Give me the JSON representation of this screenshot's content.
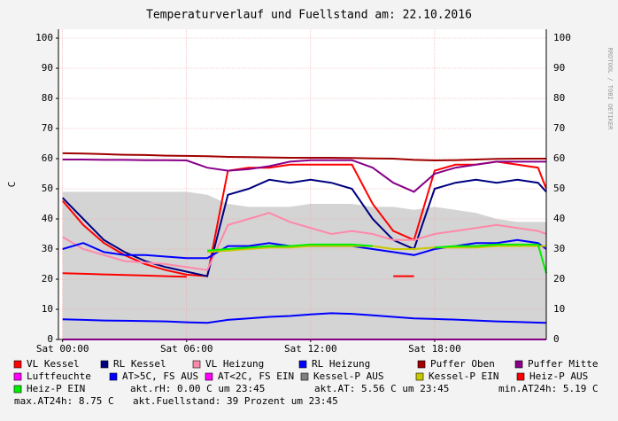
{
  "chart_data": {
    "type": "line",
    "title": "Temperaturverlauf und Fuellstand am: 22.10.2016",
    "side_text": "RRDTOOL / TOBI OETIKER",
    "y_label": "C",
    "x": [
      0,
      1,
      2,
      3,
      4,
      5,
      6,
      7,
      8,
      9,
      10,
      11,
      12,
      13,
      14,
      15,
      16,
      17,
      18,
      19,
      20,
      21,
      22,
      23,
      23.4
    ],
    "xlim": [
      -0.2,
      23.4
    ],
    "xticks": [
      {
        "value": 0,
        "label": "Sat 00:00"
      },
      {
        "value": 6,
        "label": "Sat 06:00"
      },
      {
        "value": 12,
        "label": "Sat 12:00"
      },
      {
        "value": 18,
        "label": "Sat 18:00"
      }
    ],
    "ylim": [
      0,
      100
    ],
    "yticks": [
      0,
      10,
      20,
      30,
      40,
      50,
      60,
      70,
      80,
      90,
      100
    ],
    "grid": true,
    "series": [
      {
        "name": "Kessel-P AUS",
        "color": "#d4d4d4",
        "legend_color": "#808080",
        "style": "area",
        "values": [
          49,
          49,
          49,
          49,
          49,
          49,
          49,
          48,
          45,
          44,
          44,
          44,
          45,
          45,
          45,
          44,
          44,
          43,
          44,
          43,
          42,
          40,
          39,
          39,
          39
        ]
      },
      {
        "name": "VL Kessel",
        "color": "#ff0000",
        "values": [
          46,
          38,
          32,
          28,
          25,
          23,
          21.5,
          21,
          56,
          57,
          57,
          58,
          58,
          58,
          58,
          45,
          36,
          33,
          56,
          58,
          58,
          59,
          58,
          57,
          50
        ]
      },
      {
        "name": "RL Kessel",
        "color": "#000080",
        "values": [
          47,
          40,
          33,
          29,
          26,
          24,
          22.5,
          21,
          48,
          50,
          53,
          52,
          53,
          52,
          50,
          40,
          33,
          30,
          50,
          52,
          53,
          52,
          53,
          52,
          49
        ]
      },
      {
        "name": "VL Heizung",
        "color": "#ff88aa",
        "values": [
          34,
          30,
          28,
          26,
          25.5,
          25,
          24,
          23,
          38,
          40,
          42,
          39,
          37,
          35,
          36,
          35,
          33,
          33,
          35,
          36,
          37,
          38,
          37,
          36,
          35
        ]
      },
      {
        "name": "RL Heizung",
        "color": "#0000ff",
        "values": [
          30,
          32,
          29,
          28,
          28,
          27.5,
          27,
          27,
          31,
          31,
          32,
          31,
          31,
          31,
          31,
          30,
          29,
          28,
          30,
          31,
          32,
          32,
          33,
          32,
          30
        ]
      },
      {
        "name": "Puffer Oben",
        "color": "#a00000",
        "values": [
          61.8,
          61.7,
          61.5,
          61.3,
          61.2,
          61,
          60.9,
          60.8,
          60.6,
          60.5,
          60.4,
          60.3,
          60.3,
          60.3,
          60.2,
          60.1,
          60,
          59.6,
          59.4,
          59.5,
          59.7,
          59.9,
          60,
          60,
          60
        ]
      },
      {
        "name": "Puffer Mitte",
        "color": "#880088",
        "values": [
          59.7,
          59.7,
          59.6,
          59.6,
          59.5,
          59.5,
          59.4,
          57,
          56,
          56.5,
          57.5,
          59,
          59.5,
          59.5,
          59.5,
          57,
          52,
          49,
          55,
          57,
          58,
          59,
          59,
          59,
          59
        ]
      },
      {
        "name": "Luftfeuchte",
        "color": "#ff00ff",
        "values": [
          0,
          0,
          0,
          0,
          0,
          0,
          0,
          0,
          0,
          0,
          0,
          0,
          0,
          0,
          0,
          0,
          0,
          0,
          0,
          0,
          0,
          0,
          0,
          0,
          0
        ]
      },
      {
        "name": "AT>5C, FS AUS",
        "color": "#0000ff",
        "values": [
          6.7,
          6.5,
          6.3,
          6.2,
          6.1,
          6,
          5.7,
          5.5,
          6.5,
          7,
          7.5,
          7.8,
          8.3,
          8.7,
          8.5,
          8,
          7.5,
          7,
          6.8,
          6.6,
          6.3,
          6,
          5.8,
          5.6,
          5.5
        ]
      },
      {
        "name": "AT<2C, FS EIN",
        "color": "#ff00ff",
        "values": [
          null,
          null,
          null,
          null,
          null,
          null,
          null,
          null,
          null,
          null,
          null,
          null,
          null,
          null,
          null,
          null,
          null,
          null,
          null,
          null,
          null,
          null,
          null,
          null,
          null
        ]
      },
      {
        "name": "Kessel-P EIN",
        "color": "#c8c800",
        "values": [
          null,
          null,
          null,
          null,
          null,
          null,
          null,
          29,
          29.5,
          30,
          30.5,
          30.5,
          31,
          31,
          31,
          31,
          30,
          30,
          30.5,
          30.5,
          30.5,
          31,
          31,
          31,
          31
        ]
      },
      {
        "name": "Heiz-P AUS",
        "color": "#ff0000",
        "values": [
          22,
          21.8,
          21.6,
          21.4,
          21.2,
          21,
          20.8,
          null,
          null,
          null,
          null,
          null,
          null,
          null,
          null,
          null,
          21,
          21,
          null,
          null,
          null,
          null,
          null,
          null,
          null
        ]
      },
      {
        "name": "Heiz-P EIN",
        "color": "#00ee00",
        "values": [
          null,
          null,
          null,
          null,
          null,
          null,
          null,
          29.5,
          30,
          30.5,
          31,
          31,
          31.5,
          31.5,
          31.5,
          31,
          null,
          null,
          30.5,
          31,
          31,
          31.5,
          31.5,
          31.5,
          22
        ]
      }
    ],
    "status": [
      "akt.rH: 0.00 C um 23:45",
      "akt.AT: 5.56 C um 23:45",
      "min.AT24h: 5.19 C",
      "max.AT24h: 8.75 C",
      "akt.Fuellstand:   39 Prozent um 23:45"
    ]
  }
}
